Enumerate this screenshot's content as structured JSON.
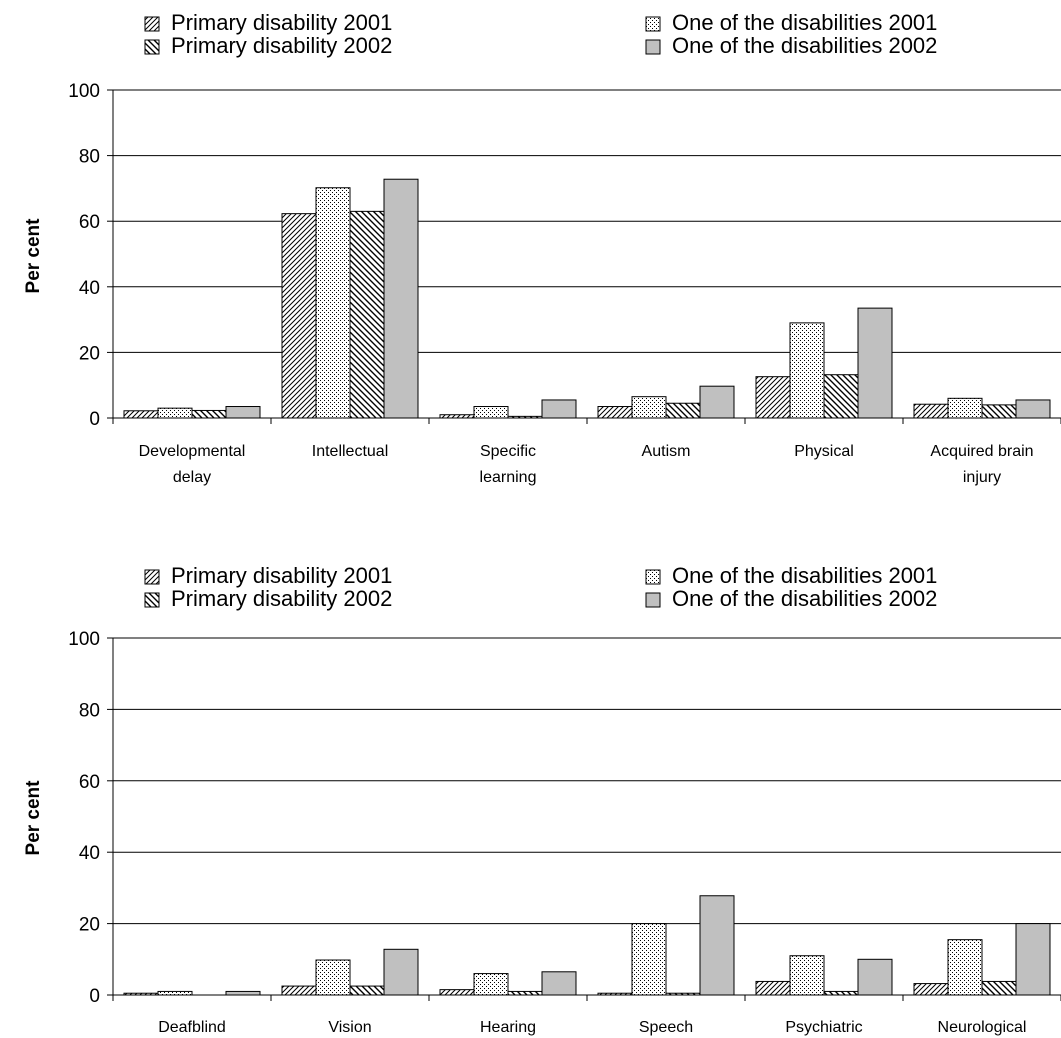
{
  "chart_data": [
    {
      "type": "bar",
      "ylabel": "Per cent",
      "ylim": [
        0,
        100
      ],
      "yticks": [
        0,
        20,
        40,
        60,
        80,
        100
      ],
      "grid": true,
      "legend": "top",
      "categories": [
        [
          "Developmental",
          "delay"
        ],
        [
          "Intellectual"
        ],
        [
          "Specific",
          "learning"
        ],
        [
          "Autism"
        ],
        [
          "Physical"
        ],
        [
          "Acquired brain",
          "injury"
        ]
      ],
      "series": [
        {
          "name": "Primary disability 2001",
          "pattern": "diag-dense",
          "values": [
            2.2,
            62.3,
            1.0,
            3.5,
            12.6,
            4.2
          ]
        },
        {
          "name": "One of the disabilities 2001",
          "pattern": "dots",
          "values": [
            3.0,
            70.2,
            3.5,
            6.5,
            29.0,
            6.0
          ]
        },
        {
          "name": "Primary disability 2002",
          "pattern": "diag-back",
          "values": [
            2.3,
            63.0,
            0.5,
            4.5,
            13.2,
            4.0
          ]
        },
        {
          "name": "One of the disabilities 2002",
          "pattern": "solid-gray",
          "values": [
            3.5,
            72.8,
            5.5,
            9.7,
            33.5,
            5.5
          ]
        }
      ]
    },
    {
      "type": "bar",
      "ylabel": "Per cent",
      "ylim": [
        0,
        100
      ],
      "yticks": [
        0,
        20,
        40,
        60,
        80,
        100
      ],
      "grid": true,
      "legend": "top",
      "categories": [
        [
          "Deafblind"
        ],
        [
          "Vision"
        ],
        [
          "Hearing"
        ],
        [
          "Speech"
        ],
        [
          "Psychiatric"
        ],
        [
          "Neurological"
        ]
      ],
      "series": [
        {
          "name": "Primary disability 2001",
          "pattern": "diag-dense",
          "values": [
            0.5,
            2.5,
            1.5,
            0.5,
            3.8,
            3.2
          ]
        },
        {
          "name": "One of the disabilities 2001",
          "pattern": "dots",
          "values": [
            1.0,
            9.8,
            6.0,
            20.0,
            11.0,
            15.5
          ]
        },
        {
          "name": "Primary disability 2002",
          "pattern": "diag-back",
          "values": [
            0.0,
            2.5,
            1.0,
            0.5,
            1.0,
            3.8
          ]
        },
        {
          "name": "One of the disabilities 2002",
          "pattern": "solid-gray",
          "values": [
            1.0,
            12.8,
            6.5,
            27.8,
            10.0,
            20.0
          ]
        }
      ]
    }
  ]
}
